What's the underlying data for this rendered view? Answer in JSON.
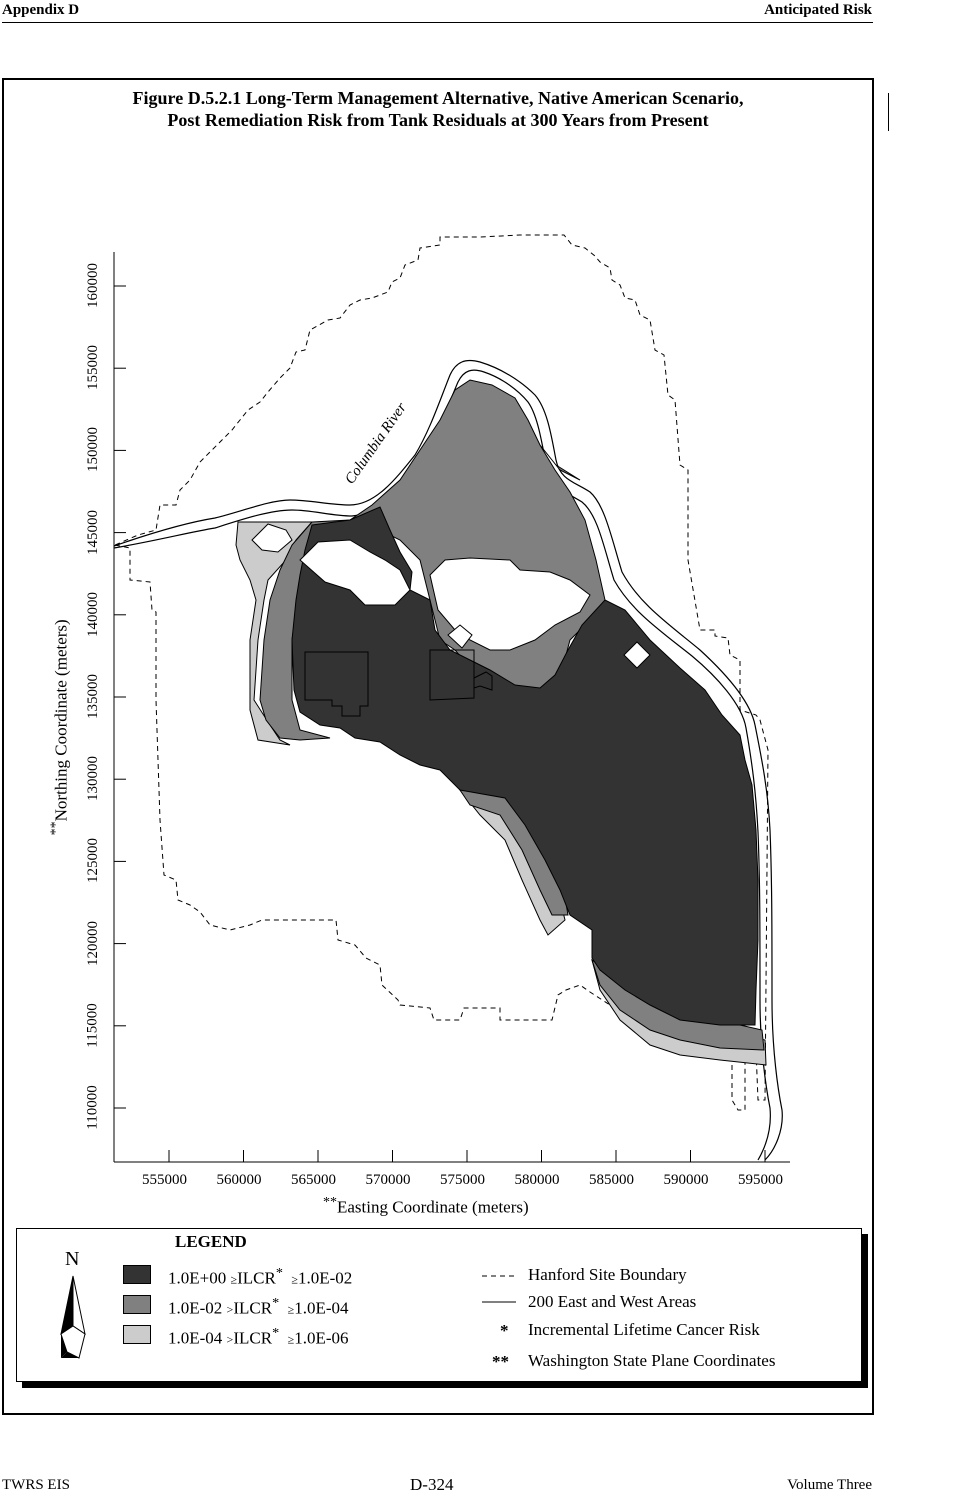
{
  "header": {
    "left": "Appendix D",
    "right": "Anticipated Risk"
  },
  "figure": {
    "title_line1": "Figure D.5.2.1  Long-Term Management Alternative, Native American Scenario,",
    "title_line2": "Post Remediation Risk from Tank Residuals at 300 Years from Present"
  },
  "map": {
    "river_label": "Columbia River",
    "y_axis_label": "Northing Coordinate (meters)",
    "y_axis_prefix": "**",
    "x_axis_label": "Easting Coordinate (meters)",
    "x_axis_prefix": "**",
    "x_ticks": [
      "555000",
      "560000",
      "565000",
      "570000",
      "575000",
      "580000",
      "585000",
      "590000",
      "595000"
    ],
    "y_ticks": [
      "110000",
      "115000",
      "120000",
      "125000",
      "130000",
      "135000",
      "140000",
      "145000",
      "150000",
      "155000",
      "160000"
    ],
    "colors": {
      "high": "#333333",
      "medium": "#808080",
      "low": "#cccccc"
    }
  },
  "legend": {
    "title": "LEGEND",
    "north_symbol": "N",
    "risk_items": [
      {
        "lo": "1.0E+00",
        "op1": "≥",
        "name": "ILCR",
        "star": "*",
        "op2": "≥",
        "hi": "1.0E-02"
      },
      {
        "lo": "1.0E-02",
        "op1": ">",
        "name": "ILCR",
        "star": "*",
        "op2": "≥",
        "hi": "1.0E-04"
      },
      {
        "lo": "1.0E-04",
        "op1": ">",
        "name": "ILCR",
        "star": "*",
        "op2": "≥",
        "hi": "1.0E-06"
      }
    ],
    "line_items": [
      {
        "label": "Hanford Site Boundary"
      },
      {
        "label": "200 East and West Areas"
      }
    ],
    "note_items": [
      {
        "symbol": "*",
        "label": "Incremental Lifetime Cancer Risk"
      },
      {
        "symbol": "**",
        "label": "Washington State Plane Coordinates"
      }
    ]
  },
  "footer": {
    "left": "TWRS EIS",
    "center": "D-324",
    "right": "Volume Three"
  }
}
